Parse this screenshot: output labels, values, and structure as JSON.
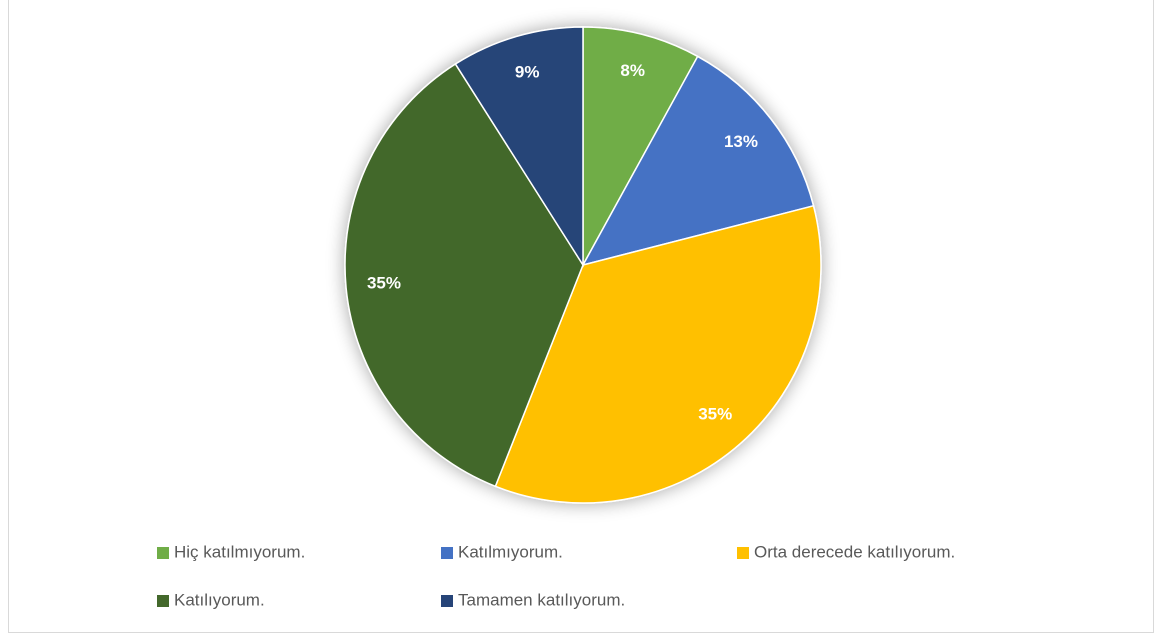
{
  "chart_data": {
    "type": "pie",
    "categories": [
      "Hiç katılmıyorum.",
      "Katılmıyorum.",
      "Orta derecede katılıyorum.",
      "Katılıyorum.",
      "Tamamen katılıyorum."
    ],
    "values": [
      8,
      13,
      35,
      35,
      9
    ],
    "value_labels": [
      "8%",
      "13%",
      "35%",
      "35%",
      "9%"
    ],
    "colors": [
      "#70ad47",
      "#4472c4",
      "#ffc000",
      "#43682b",
      "#264478"
    ],
    "legend": "bottom"
  }
}
